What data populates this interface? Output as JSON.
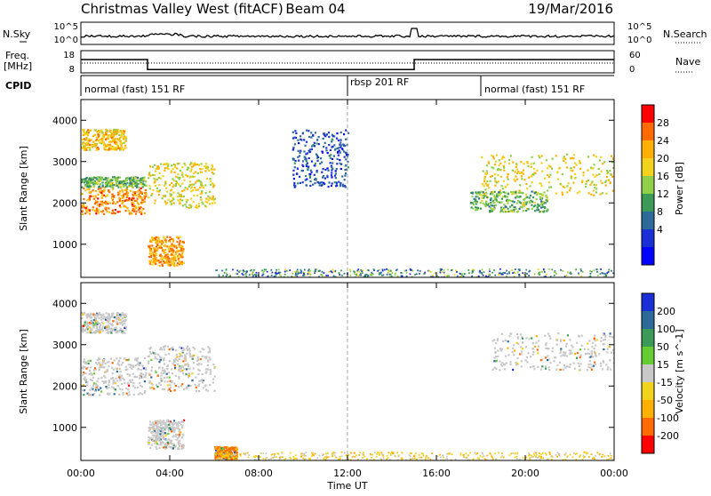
{
  "header": {
    "station": "Christmas Valley West (fitACF)",
    "beam": "Beam 04",
    "date": "19/Mar/2016"
  },
  "nsky_panel": {
    "left_label": "N.Sky",
    "right_label": "N.Search",
    "left_ticks": [
      "10^5",
      "10^0"
    ],
    "right_ticks": [
      "10^5",
      "10^0"
    ]
  },
  "freq_panel": {
    "left_label_1": "Freq.",
    "left_label_2": "[MHz]",
    "right_label": "Nave",
    "left_ticks": [
      "18",
      "8"
    ],
    "right_ticks": [
      "60",
      "0"
    ]
  },
  "cpid_panel": {
    "label": "CPID",
    "segments": [
      {
        "text": "normal (fast) 151 RF",
        "start_hour": 0
      },
      {
        "text": "rbsp 201 RF",
        "start_hour": 12
      },
      {
        "text": "normal (fast) 151 RF",
        "start_hour": 18
      }
    ]
  },
  "power_colorbar": {
    "label": "Power [dB]",
    "ticks": [
      "28",
      "24",
      "20",
      "16",
      "12",
      "8",
      "4"
    ],
    "colors": [
      "#ff0000",
      "#ff6a00",
      "#ffb000",
      "#f2d21c",
      "#8fd048",
      "#3c9a58",
      "#2c6a9a",
      "#1b2fd6",
      "#0000ff"
    ]
  },
  "velocity_colorbar": {
    "label": "Velocity [m s^-1]",
    "ticks": [
      "200",
      "100",
      "50",
      "15",
      "-15",
      "-50",
      "-100",
      "-200"
    ],
    "colors": [
      "#1b2fd6",
      "#2c6a9a",
      "#3c9a58",
      "#66cc33",
      "#c8c8c8",
      "#f2d21c",
      "#ffb000",
      "#ff6a00",
      "#ff0000"
    ]
  },
  "chart_data": {
    "type": "heatmap",
    "x_axis_label": "Time UT",
    "x_ticks": [
      "00:00",
      "04:00",
      "08:00",
      "12:00",
      "16:00",
      "20:00",
      "00:00"
    ],
    "xlim_hours": [
      0,
      24
    ],
    "y_axis_label": "Slant Range [km]",
    "y_ticks": [
      1000,
      2000,
      3000,
      4000
    ],
    "ylim_km": [
      200,
      4500
    ],
    "freq_mhz": [
      {
        "start_hour": 0,
        "end_hour": 3,
        "value": 14
      },
      {
        "start_hour": 3,
        "end_hour": 15,
        "value": 9.5
      },
      {
        "start_hour": 15,
        "end_hour": 24,
        "value": 14
      }
    ],
    "power_regions": [
      {
        "t0": 0.0,
        "t1": 2.9,
        "r0": 1750,
        "r1": 2400,
        "power_db": 26
      },
      {
        "t0": 0.0,
        "t1": 2.9,
        "r0": 2400,
        "r1": 2650,
        "power_db": 14
      },
      {
        "t0": 0.0,
        "t1": 2.0,
        "r0": 3300,
        "r1": 3800,
        "power_db": 22
      },
      {
        "t0": 3.0,
        "t1": 6.0,
        "r0": 1900,
        "r1": 3000,
        "power_db": 20
      },
      {
        "t0": 3.0,
        "t1": 4.6,
        "r0": 500,
        "r1": 1200,
        "power_db": 25
      },
      {
        "t0": 9.5,
        "t1": 12.0,
        "r0": 2400,
        "r1": 3800,
        "power_db": 6
      },
      {
        "t0": 18.0,
        "t1": 24.0,
        "r0": 2200,
        "r1": 3200,
        "power_db": 20
      },
      {
        "t0": 17.5,
        "t1": 21.0,
        "r0": 1800,
        "r1": 2300,
        "power_db": 14
      }
    ],
    "velocity_regions": [
      {
        "t0": 0.0,
        "t1": 2.9,
        "r0": 1800,
        "r1": 2700,
        "velocity": 0
      },
      {
        "t0": 0.0,
        "t1": 2.0,
        "r0": 3300,
        "r1": 3800,
        "velocity": 0
      },
      {
        "t0": 3.0,
        "t1": 6.0,
        "r0": 1900,
        "r1": 3000,
        "velocity": 0
      },
      {
        "t0": 3.0,
        "t1": 4.6,
        "r0": 500,
        "r1": 1200,
        "velocity": 0
      },
      {
        "t0": 6.0,
        "t1": 7.0,
        "r0": 250,
        "r1": 550,
        "velocity": -100
      },
      {
        "t0": 18.5,
        "t1": 24.0,
        "r0": 2400,
        "r1": 3300,
        "velocity": 0
      }
    ]
  }
}
